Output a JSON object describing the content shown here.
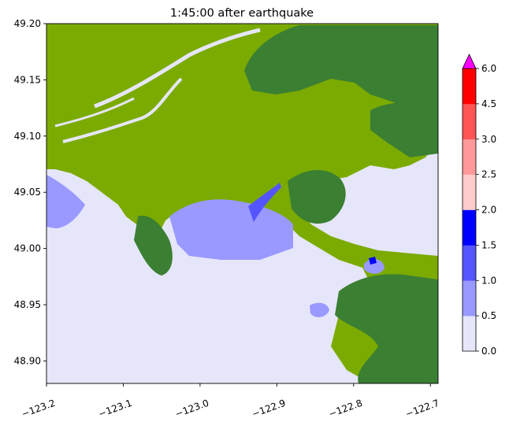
{
  "chart_data": {
    "type": "heatmap",
    "title": "1:45:00 after earthquake",
    "xlabel": "",
    "ylabel": "",
    "xlim": [
      -123.2,
      -122.69
    ],
    "ylim": [
      48.88,
      49.2
    ],
    "x_ticks": [
      "−123.2",
      "−123.1",
      "−123.0",
      "−122.9",
      "−122.8",
      "−122.7"
    ],
    "x_tick_values": [
      -123.2,
      -123.1,
      -123.0,
      -122.9,
      -122.8,
      -122.7
    ],
    "y_ticks": [
      "48.90",
      "48.95",
      "49.00",
      "49.05",
      "49.10",
      "49.15",
      "49.20"
    ],
    "y_tick_values": [
      48.9,
      48.95,
      49.0,
      49.05,
      49.1,
      49.15,
      49.2
    ],
    "colorbar": {
      "ticks": [
        "0.0",
        "0.5",
        "1.0",
        "1.5",
        "2.0",
        "2.5",
        "3.0",
        "4.5",
        "6.0"
      ],
      "levels": [
        0.0,
        0.5,
        1.0,
        1.5,
        2.0,
        2.5,
        3.0,
        4.5,
        6.0
      ],
      "colors": [
        "#e6e6fa",
        "#9999ff",
        "#5555ff",
        "#0000ff",
        "#ffcccc",
        "#ff9999",
        "#ff5555",
        "#ff0000"
      ],
      "extend": "max",
      "extend_color": "#ff00ff"
    },
    "land_colors": {
      "lowland": "#7bab00",
      "highland": "#3b7f33"
    },
    "water_color": "#e6e6fa",
    "grid": false
  }
}
